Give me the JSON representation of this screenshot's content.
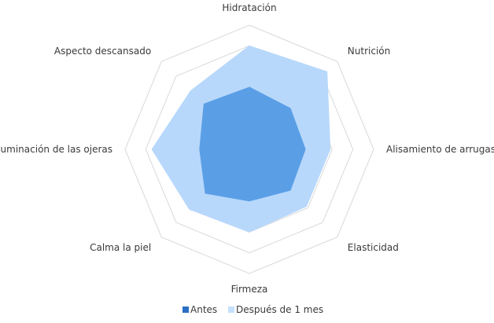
{
  "chart_data": {
    "type": "radar",
    "axes": [
      "Hidratación",
      "Nutrición",
      "Alisamiento de arrugas",
      "Elasticidad",
      "Firmeza",
      "Calma la piel",
      "Aspecto descansado",
      "Iluminación de las ojeras"
    ],
    "order_clockwise_from_top": [
      "Hidratación",
      "Nutrición",
      "Alisamiento de arrugas",
      "Elasticidad",
      "Firmeza",
      "Calma la piel",
      "Iluminación de las ojeras",
      "Aspecto descansado"
    ],
    "rings": 6,
    "rmax": 6,
    "series": [
      {
        "name": "Antes",
        "color": "#5a9fe6",
        "legend_color": "#2a6fc4",
        "values": {
          "Hidratación": 3.0,
          "Nutrición": 2.8,
          "Alisamiento de arrugas": 2.7,
          "Elasticidad": 2.8,
          "Firmeza": 2.5,
          "Calma la piel": 3.0,
          "Iluminación de las ojeras": 2.4,
          "Aspecto descansado": 3.1
        }
      },
      {
        "name": "Después de 1 mes",
        "color": "#b8d8fb",
        "legend_color": "#c5e0fc",
        "values": {
          "Hidratación": 5.0,
          "Nutrición": 5.3,
          "Alisamiento de arrugas": 3.9,
          "Elasticidad": 3.9,
          "Firmeza": 4.0,
          "Calma la piel": 4.1,
          "Iluminación de las ojeras": 4.7,
          "Aspecto descansado": 4.0
        }
      }
    ],
    "legend_position": "bottom"
  }
}
